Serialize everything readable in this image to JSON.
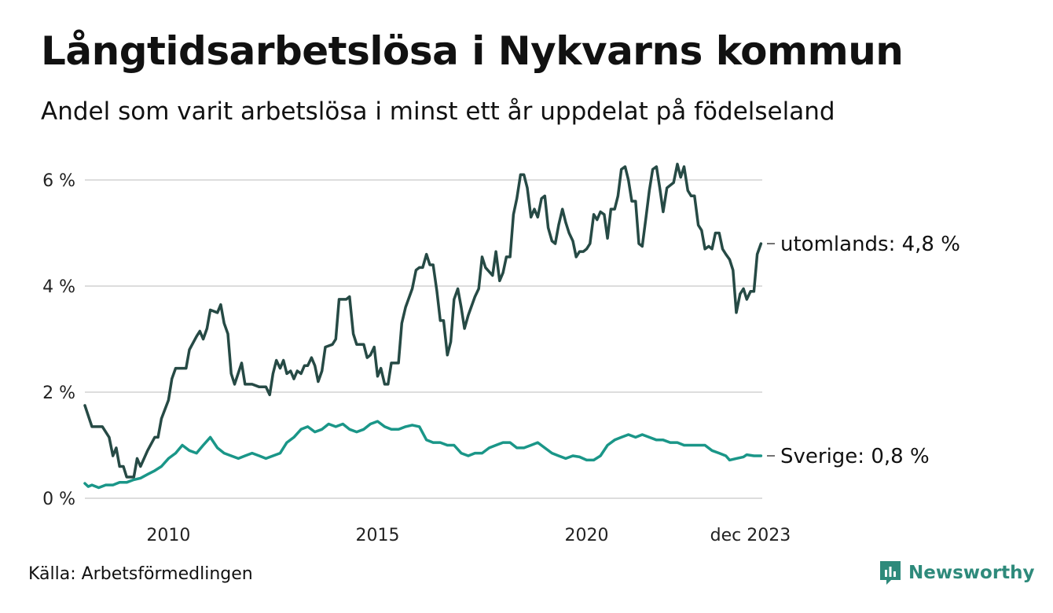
{
  "title": "Långtidsarbetslösa i Nykvarns kommun",
  "subtitle": "Andel som varit arbetslösa i minst ett år uppdelat på födelseland",
  "source": "Källa: Arbetsförmedlingen",
  "brand": "Newsworthy",
  "colors": {
    "utomlands": "#264a45",
    "sverige": "#1a9688",
    "grid": "#dddddd",
    "brand": "#2e8a7b"
  },
  "chart_data": {
    "type": "line",
    "title": "Långtidsarbetslösa i Nykvarns kommun",
    "xlabel": "",
    "ylabel": "",
    "x_range": [
      2008.0,
      2023.917
    ],
    "ylim": [
      0,
      6.0
    ],
    "y_ticks": [
      0,
      2,
      4,
      6
    ],
    "y_tick_labels": [
      "0 %",
      "2 %",
      "4 %",
      "6 %"
    ],
    "x_ticks": [
      2010,
      2015,
      2020,
      2023.917
    ],
    "x_tick_labels": [
      "2010",
      "2015",
      "2020",
      "dec 2023"
    ],
    "grid": true,
    "series": [
      {
        "name": "utomlands",
        "label": "utomlands: 4,8 %",
        "points": [
          [
            2008.0,
            1.75
          ],
          [
            2008.17,
            1.35
          ],
          [
            2008.42,
            1.35
          ],
          [
            2008.58,
            1.15
          ],
          [
            2008.67,
            0.8
          ],
          [
            2008.75,
            0.95
          ],
          [
            2008.83,
            0.6
          ],
          [
            2008.92,
            0.6
          ],
          [
            2009.0,
            0.4
          ],
          [
            2009.17,
            0.4
          ],
          [
            2009.25,
            0.75
          ],
          [
            2009.33,
            0.6
          ],
          [
            2009.5,
            0.9
          ],
          [
            2009.67,
            1.15
          ],
          [
            2009.75,
            1.15
          ],
          [
            2009.83,
            1.5
          ],
          [
            2010.0,
            1.85
          ],
          [
            2010.08,
            2.25
          ],
          [
            2010.17,
            2.45
          ],
          [
            2010.33,
            2.45
          ],
          [
            2010.42,
            2.45
          ],
          [
            2010.5,
            2.8
          ],
          [
            2010.67,
            3.05
          ],
          [
            2010.75,
            3.15
          ],
          [
            2010.83,
            3.0
          ],
          [
            2010.92,
            3.2
          ],
          [
            2011.0,
            3.55
          ],
          [
            2011.17,
            3.5
          ],
          [
            2011.25,
            3.65
          ],
          [
            2011.33,
            3.3
          ],
          [
            2011.42,
            3.1
          ],
          [
            2011.5,
            2.35
          ],
          [
            2011.58,
            2.15
          ],
          [
            2011.75,
            2.55
          ],
          [
            2011.83,
            2.15
          ],
          [
            2012.0,
            2.15
          ],
          [
            2012.17,
            2.1
          ],
          [
            2012.33,
            2.1
          ],
          [
            2012.42,
            1.95
          ],
          [
            2012.5,
            2.35
          ],
          [
            2012.58,
            2.6
          ],
          [
            2012.67,
            2.45
          ],
          [
            2012.75,
            2.6
          ],
          [
            2012.83,
            2.35
          ],
          [
            2012.92,
            2.4
          ],
          [
            2013.0,
            2.25
          ],
          [
            2013.08,
            2.4
          ],
          [
            2013.17,
            2.35
          ],
          [
            2013.25,
            2.5
          ],
          [
            2013.33,
            2.5
          ],
          [
            2013.42,
            2.65
          ],
          [
            2013.5,
            2.5
          ],
          [
            2013.58,
            2.2
          ],
          [
            2013.67,
            2.4
          ],
          [
            2013.75,
            2.85
          ],
          [
            2013.92,
            2.9
          ],
          [
            2014.0,
            3.0
          ],
          [
            2014.08,
            3.75
          ],
          [
            2014.25,
            3.75
          ],
          [
            2014.33,
            3.8
          ],
          [
            2014.42,
            3.1
          ],
          [
            2014.5,
            2.9
          ],
          [
            2014.67,
            2.9
          ],
          [
            2014.75,
            2.65
          ],
          [
            2014.83,
            2.7
          ],
          [
            2014.92,
            2.85
          ],
          [
            2015.0,
            2.3
          ],
          [
            2015.08,
            2.45
          ],
          [
            2015.17,
            2.15
          ],
          [
            2015.25,
            2.15
          ],
          [
            2015.33,
            2.55
          ],
          [
            2015.5,
            2.55
          ],
          [
            2015.58,
            3.3
          ],
          [
            2015.67,
            3.6
          ],
          [
            2015.83,
            3.95
          ],
          [
            2015.92,
            4.3
          ],
          [
            2016.0,
            4.35
          ],
          [
            2016.08,
            4.35
          ],
          [
            2016.17,
            4.6
          ],
          [
            2016.25,
            4.4
          ],
          [
            2016.33,
            4.4
          ],
          [
            2016.42,
            3.9
          ],
          [
            2016.5,
            3.35
          ],
          [
            2016.58,
            3.35
          ],
          [
            2016.67,
            2.7
          ],
          [
            2016.75,
            2.95
          ],
          [
            2016.83,
            3.75
          ],
          [
            2016.92,
            3.95
          ],
          [
            2017.0,
            3.6
          ],
          [
            2017.08,
            3.2
          ],
          [
            2017.17,
            3.45
          ],
          [
            2017.33,
            3.8
          ],
          [
            2017.42,
            3.95
          ],
          [
            2017.5,
            4.55
          ],
          [
            2017.58,
            4.35
          ],
          [
            2017.75,
            4.2
          ],
          [
            2017.83,
            4.65
          ],
          [
            2017.92,
            4.1
          ],
          [
            2018.0,
            4.25
          ],
          [
            2018.08,
            4.55
          ],
          [
            2018.17,
            4.55
          ],
          [
            2018.25,
            5.35
          ],
          [
            2018.33,
            5.65
          ],
          [
            2018.42,
            6.1
          ],
          [
            2018.5,
            6.1
          ],
          [
            2018.58,
            5.85
          ],
          [
            2018.67,
            5.3
          ],
          [
            2018.75,
            5.45
          ],
          [
            2018.83,
            5.3
          ],
          [
            2018.92,
            5.65
          ],
          [
            2019.0,
            5.7
          ],
          [
            2019.08,
            5.1
          ],
          [
            2019.17,
            4.85
          ],
          [
            2019.25,
            4.8
          ],
          [
            2019.33,
            5.15
          ],
          [
            2019.42,
            5.45
          ],
          [
            2019.5,
            5.2
          ],
          [
            2019.58,
            5.0
          ],
          [
            2019.67,
            4.85
          ],
          [
            2019.75,
            4.55
          ],
          [
            2019.83,
            4.65
          ],
          [
            2019.92,
            4.65
          ],
          [
            2020.0,
            4.7
          ],
          [
            2020.08,
            4.8
          ],
          [
            2020.17,
            5.35
          ],
          [
            2020.25,
            5.25
          ],
          [
            2020.33,
            5.4
          ],
          [
            2020.42,
            5.35
          ],
          [
            2020.5,
            4.9
          ],
          [
            2020.58,
            5.45
          ],
          [
            2020.67,
            5.45
          ],
          [
            2020.75,
            5.7
          ],
          [
            2020.83,
            6.2
          ],
          [
            2020.92,
            6.25
          ],
          [
            2021.0,
            6.0
          ],
          [
            2021.08,
            5.6
          ],
          [
            2021.17,
            5.6
          ],
          [
            2021.25,
            4.8
          ],
          [
            2021.33,
            4.75
          ],
          [
            2021.42,
            5.3
          ],
          [
            2021.5,
            5.8
          ],
          [
            2021.58,
            6.2
          ],
          [
            2021.67,
            6.25
          ],
          [
            2021.75,
            5.85
          ],
          [
            2021.83,
            5.4
          ],
          [
            2021.92,
            5.85
          ],
          [
            2022.0,
            5.9
          ],
          [
            2022.08,
            5.95
          ],
          [
            2022.17,
            6.3
          ],
          [
            2022.25,
            6.05
          ],
          [
            2022.33,
            6.25
          ],
          [
            2022.42,
            5.8
          ],
          [
            2022.5,
            5.7
          ],
          [
            2022.58,
            5.7
          ],
          [
            2022.67,
            5.15
          ],
          [
            2022.75,
            5.05
          ],
          [
            2022.83,
            4.7
          ],
          [
            2022.92,
            4.75
          ],
          [
            2023.0,
            4.7
          ],
          [
            2023.08,
            5.0
          ],
          [
            2023.17,
            5.0
          ],
          [
            2023.25,
            4.7
          ],
          [
            2023.33,
            4.6
          ],
          [
            2023.42,
            4.5
          ],
          [
            2023.5,
            4.3
          ],
          [
            2023.58,
            3.5
          ],
          [
            2023.67,
            3.85
          ],
          [
            2023.75,
            3.95
          ],
          [
            2023.83,
            3.75
          ],
          [
            2023.92,
            3.9
          ],
          [
            2024.0,
            3.9
          ],
          [
            2024.08,
            4.6
          ],
          [
            2024.17,
            4.8
          ]
        ]
      },
      {
        "name": "Sverige",
        "label": "Sverige: 0,8 %",
        "points": [
          [
            2008.0,
            0.28
          ],
          [
            2008.08,
            0.22
          ],
          [
            2008.17,
            0.25
          ],
          [
            2008.33,
            0.2
          ],
          [
            2008.5,
            0.25
          ],
          [
            2008.67,
            0.25
          ],
          [
            2008.83,
            0.3
          ],
          [
            2009.0,
            0.3
          ],
          [
            2009.17,
            0.35
          ],
          [
            2009.33,
            0.38
          ],
          [
            2009.5,
            0.45
          ],
          [
            2009.67,
            0.52
          ],
          [
            2009.83,
            0.6
          ],
          [
            2010.0,
            0.75
          ],
          [
            2010.17,
            0.85
          ],
          [
            2010.33,
            1.0
          ],
          [
            2010.5,
            0.9
          ],
          [
            2010.67,
            0.85
          ],
          [
            2010.83,
            1.0
          ],
          [
            2011.0,
            1.15
          ],
          [
            2011.17,
            0.95
          ],
          [
            2011.33,
            0.85
          ],
          [
            2011.5,
            0.8
          ],
          [
            2011.67,
            0.75
          ],
          [
            2011.83,
            0.8
          ],
          [
            2012.0,
            0.85
          ],
          [
            2012.17,
            0.8
          ],
          [
            2012.33,
            0.75
          ],
          [
            2012.5,
            0.8
          ],
          [
            2012.67,
            0.85
          ],
          [
            2012.83,
            1.05
          ],
          [
            2013.0,
            1.15
          ],
          [
            2013.17,
            1.3
          ],
          [
            2013.33,
            1.35
          ],
          [
            2013.5,
            1.25
          ],
          [
            2013.67,
            1.3
          ],
          [
            2013.83,
            1.4
          ],
          [
            2014.0,
            1.35
          ],
          [
            2014.17,
            1.4
          ],
          [
            2014.33,
            1.3
          ],
          [
            2014.5,
            1.25
          ],
          [
            2014.67,
            1.3
          ],
          [
            2014.83,
            1.4
          ],
          [
            2015.0,
            1.45
          ],
          [
            2015.17,
            1.35
          ],
          [
            2015.33,
            1.3
          ],
          [
            2015.5,
            1.3
          ],
          [
            2015.67,
            1.35
          ],
          [
            2015.83,
            1.38
          ],
          [
            2016.0,
            1.35
          ],
          [
            2016.17,
            1.1
          ],
          [
            2016.33,
            1.05
          ],
          [
            2016.5,
            1.05
          ],
          [
            2016.67,
            1.0
          ],
          [
            2016.83,
            1.0
          ],
          [
            2017.0,
            0.85
          ],
          [
            2017.17,
            0.8
          ],
          [
            2017.33,
            0.85
          ],
          [
            2017.5,
            0.85
          ],
          [
            2017.67,
            0.95
          ],
          [
            2017.83,
            1.0
          ],
          [
            2018.0,
            1.05
          ],
          [
            2018.17,
            1.05
          ],
          [
            2018.33,
            0.95
          ],
          [
            2018.5,
            0.95
          ],
          [
            2018.67,
            1.0
          ],
          [
            2018.83,
            1.05
          ],
          [
            2019.0,
            0.95
          ],
          [
            2019.17,
            0.85
          ],
          [
            2019.33,
            0.8
          ],
          [
            2019.5,
            0.75
          ],
          [
            2019.67,
            0.8
          ],
          [
            2019.83,
            0.78
          ],
          [
            2020.0,
            0.72
          ],
          [
            2020.17,
            0.72
          ],
          [
            2020.33,
            0.8
          ],
          [
            2020.5,
            1.0
          ],
          [
            2020.67,
            1.1
          ],
          [
            2020.83,
            1.15
          ],
          [
            2021.0,
            1.2
          ],
          [
            2021.17,
            1.15
          ],
          [
            2021.33,
            1.2
          ],
          [
            2021.5,
            1.15
          ],
          [
            2021.67,
            1.1
          ],
          [
            2021.83,
            1.1
          ],
          [
            2022.0,
            1.05
          ],
          [
            2022.17,
            1.05
          ],
          [
            2022.33,
            1.0
          ],
          [
            2022.5,
            1.0
          ],
          [
            2022.67,
            1.0
          ],
          [
            2022.83,
            1.0
          ],
          [
            2023.0,
            0.9
          ],
          [
            2023.17,
            0.85
          ],
          [
            2023.33,
            0.8
          ],
          [
            2023.42,
            0.72
          ],
          [
            2023.58,
            0.75
          ],
          [
            2023.75,
            0.78
          ],
          [
            2023.83,
            0.82
          ],
          [
            2024.0,
            0.8
          ],
          [
            2024.17,
            0.8
          ]
        ]
      }
    ]
  }
}
